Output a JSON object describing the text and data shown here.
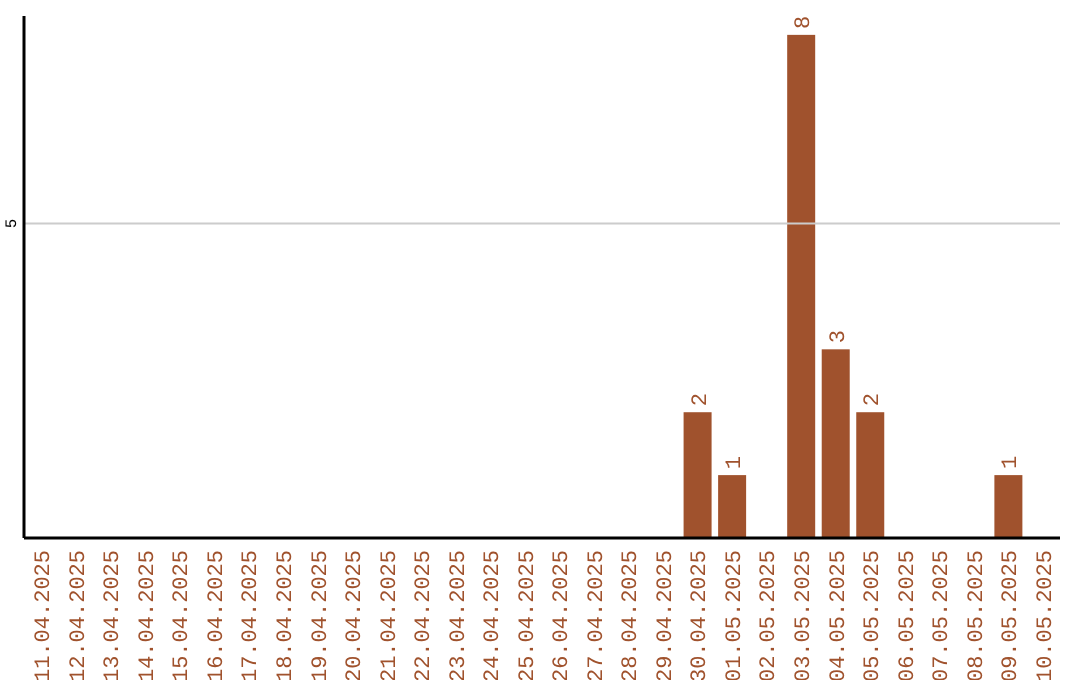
{
  "chart_data": {
    "type": "bar",
    "categories": [
      "11.04.2025",
      "12.04.2025",
      "13.04.2025",
      "14.04.2025",
      "15.04.2025",
      "16.04.2025",
      "17.04.2025",
      "18.04.2025",
      "19.04.2025",
      "20.04.2025",
      "21.04.2025",
      "22.04.2025",
      "23.04.2025",
      "24.04.2025",
      "25.04.2025",
      "26.04.2025",
      "27.04.2025",
      "28.04.2025",
      "29.04.2025",
      "30.04.2025",
      "01.05.2025",
      "02.05.2025",
      "03.05.2025",
      "04.05.2025",
      "05.05.2025",
      "06.05.2025",
      "07.05.2025",
      "08.05.2025",
      "09.05.2025",
      "10.05.2025"
    ],
    "values": [
      null,
      null,
      null,
      null,
      null,
      null,
      null,
      null,
      null,
      null,
      null,
      null,
      null,
      null,
      null,
      null,
      null,
      null,
      null,
      2,
      1,
      null,
      8,
      3,
      2,
      null,
      null,
      null,
      1,
      null
    ],
    "data_labels": true,
    "color": "#a0522d",
    "ylim": [
      0,
      8.3
    ],
    "yticks": [
      5
    ],
    "grid": "y"
  }
}
